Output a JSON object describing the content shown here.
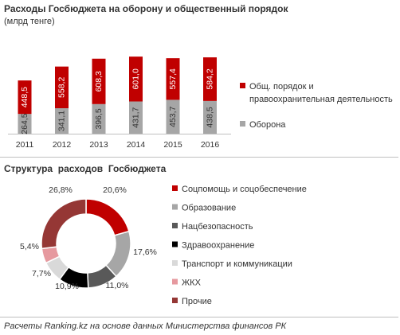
{
  "chart_data": [
    {
      "type": "bar",
      "stacked": true,
      "title": "Расходы Госбюджета на оборону и общественный порядок",
      "subtitle": "(млрд тенге)",
      "categories": [
        "2011",
        "2012",
        "2013",
        "2014",
        "2015",
        "2016"
      ],
      "value_labels": {
        "defense": [
          "264,5",
          "341,1",
          "396,5",
          "431,7",
          "453,7",
          "438,5"
        ],
        "public_order": [
          "448,5",
          "558,2",
          "608,3",
          "601,0",
          "557,4",
          "584,2"
        ]
      },
      "series": [
        {
          "name": "Оборона",
          "color": "#a6a6a6",
          "values": [
            264.5,
            341.1,
            396.5,
            431.7,
            453.7,
            438.5
          ]
        },
        {
          "name": "Общ. порядок и правоохранительная деятельность",
          "color": "#c00000",
          "values": [
            448.5,
            558.2,
            608.3,
            601.0,
            557.4,
            584.2
          ]
        }
      ],
      "legend": {
        "position": "right",
        "items": [
          {
            "lines": [
              "Общ. порядок и",
              "правоохранительная деятельность"
            ],
            "color": "#c00000"
          },
          {
            "lines": [
              "Оборона"
            ],
            "color": "#a6a6a6"
          }
        ]
      },
      "grid": false,
      "ylim": [
        0,
        1100
      ]
    },
    {
      "type": "pie",
      "donut": true,
      "title": "Структура  расходов  Госбюджета",
      "categories": [
        "Соцпомощь и соцобеспечение",
        "Образование",
        "Нацбезопасность",
        "Здравоохранение",
        "Транспорт и коммуникации",
        "ЖКХ",
        "Прочие"
      ],
      "values": [
        20.6,
        17.6,
        11.0,
        10.9,
        7.7,
        5.4,
        26.8
      ],
      "labels": [
        "20,6%",
        "17,6%",
        "11,0%",
        "10,9%",
        "7,7%",
        "5,4%",
        "26,8%"
      ],
      "colors": [
        "#c00000",
        "#a6a6a6",
        "#595959",
        "#000000",
        "#d9d9d9",
        "#e6999f",
        "#953735"
      ],
      "legend": {
        "position": "right"
      }
    }
  ],
  "footer": "Расчеты Ranking.kz на основе данных Министерства финансов РК"
}
